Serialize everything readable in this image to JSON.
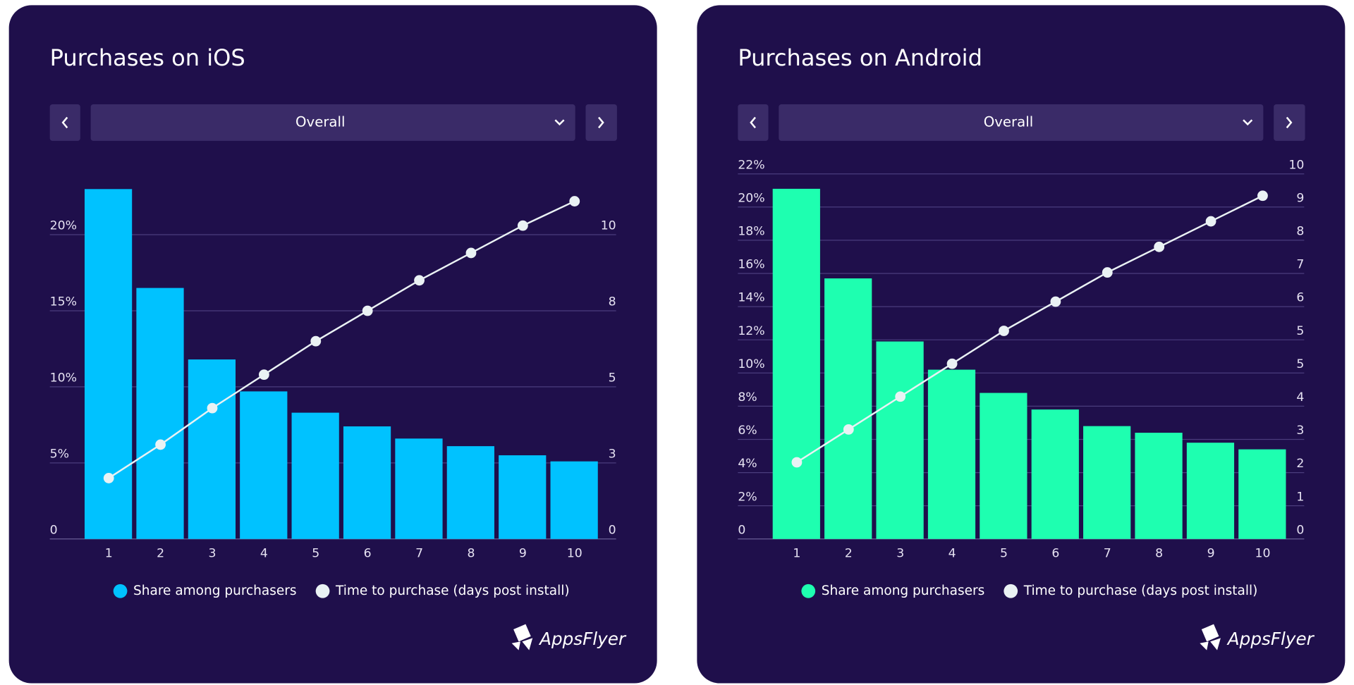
{
  "chart_data": [
    {
      "type": "bar",
      "title": "Purchases on iOS",
      "selector": "Overall",
      "logo": "AppsFlyer",
      "categories": [
        "1",
        "2",
        "3",
        "4",
        "5",
        "6",
        "7",
        "8",
        "9",
        "10"
      ],
      "series": [
        {
          "name": "Share among purchasers",
          "color": "#00c2ff",
          "values": [
            23.0,
            16.5,
            11.8,
            9.7,
            8.3,
            7.4,
            6.6,
            6.1,
            5.5,
            5.1
          ]
        },
        {
          "name": "Time to purchase (days post install)",
          "type": "line",
          "axis": "y2",
          "color": "#eaf2f4",
          "values": [
            2.0,
            3.1,
            4.3,
            5.4,
            6.5,
            7.5,
            8.5,
            9.4,
            10.3,
            11.1
          ]
        }
      ],
      "ylim": [
        0,
        24
      ],
      "yticks": [
        0,
        {
          "value": 5,
          "label": "5%"
        },
        {
          "value": 10,
          "label": "10%"
        },
        {
          "value": 15,
          "label": "15%"
        },
        {
          "value": 20,
          "label": "20%"
        }
      ],
      "y2lim": [
        0,
        12
      ],
      "y2ticks": [
        0,
        {
          "value": 2.5,
          "label": "3"
        },
        5,
        {
          "value": 7.5,
          "label": "8"
        },
        10
      ],
      "grid": true
    },
    {
      "type": "bar",
      "title": "Purchases on Android",
      "selector": "Overall",
      "logo": "AppsFlyer",
      "categories": [
        "1",
        "2",
        "3",
        "4",
        "5",
        "6",
        "7",
        "8",
        "9",
        "10"
      ],
      "series": [
        {
          "name": "Share among purchasers",
          "color": "#1effb0",
          "values": [
            21.1,
            15.7,
            11.9,
            10.2,
            8.8,
            7.8,
            6.8,
            6.4,
            5.8,
            5.4
          ]
        },
        {
          "name": "Time to purchase (days post install)",
          "type": "line",
          "axis": "y2",
          "color": "#eaf2f4",
          "values": [
            2.1,
            3.0,
            3.9,
            4.8,
            5.7,
            6.5,
            7.3,
            8.0,
            8.7,
            9.4
          ]
        }
      ],
      "ylim": [
        0,
        22
      ],
      "yticks": [
        0,
        {
          "value": 2,
          "label": "2%"
        },
        {
          "value": 4,
          "label": "4%"
        },
        {
          "value": 6,
          "label": "6%"
        },
        {
          "value": 8,
          "label": "8%"
        },
        {
          "value": 10,
          "label": "10%"
        },
        {
          "value": 12,
          "label": "12%"
        },
        {
          "value": 14,
          "label": "14%"
        },
        {
          "value": 16,
          "label": "16%"
        },
        {
          "value": 18,
          "label": "18%"
        },
        {
          "value": 20,
          "label": "20%"
        },
        {
          "value": 22,
          "label": "22%"
        }
      ],
      "y2lim": [
        0,
        10
      ],
      "y2ticks": [
        0,
        {
          "value": 0.909,
          "label": "1"
        },
        {
          "value": 1.818,
          "label": "2"
        },
        {
          "value": 2.727,
          "label": "3"
        },
        {
          "value": 3.636,
          "label": "4"
        },
        {
          "value": 4.545,
          "label": "5"
        },
        {
          "value": 5.455,
          "label": "5"
        },
        {
          "value": 6.364,
          "label": "6"
        },
        {
          "value": 7.273,
          "label": "7"
        },
        {
          "value": 8.182,
          "label": "8"
        },
        {
          "value": 9.091,
          "label": "9"
        },
        10
      ],
      "grid": true
    }
  ]
}
